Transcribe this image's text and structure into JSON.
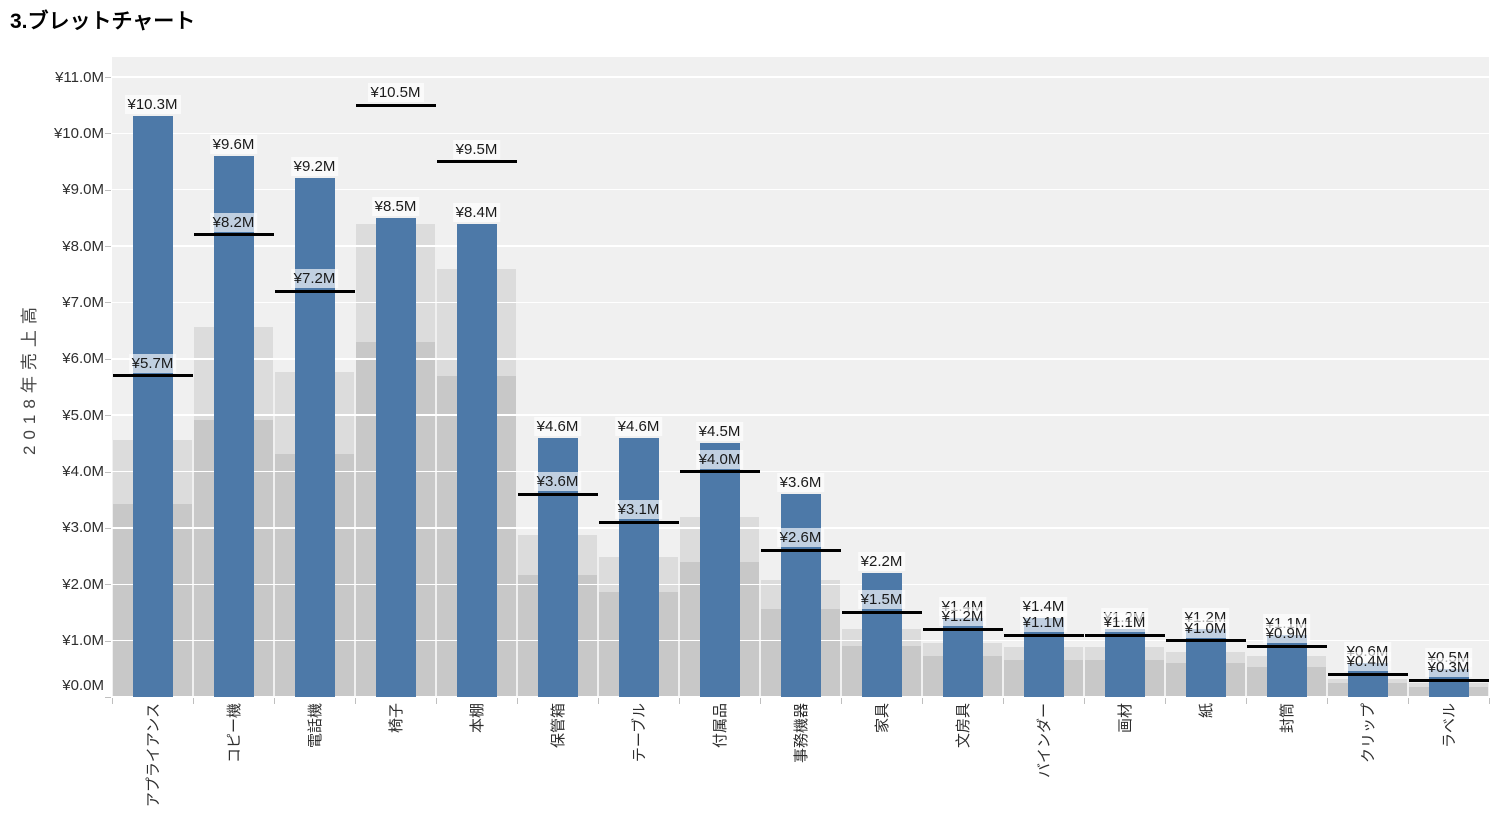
{
  "title": "3.ブレットチャート",
  "chart_data": {
    "type": "bar",
    "subtype": "bullet",
    "title": "3.ブレットチャート",
    "ylabel": "2018年売上高",
    "ylim": [
      0,
      11
    ],
    "grid": true,
    "y_tick_labels": [
      "¥0.0M",
      "¥1.0M",
      "¥2.0M",
      "¥3.0M",
      "¥4.0M",
      "¥5.0M",
      "¥6.0M",
      "¥7.0M",
      "¥8.0M",
      "¥9.0M",
      "¥10.0M",
      "¥11.0M"
    ],
    "categories": [
      "アプライアンス",
      "コピー機",
      "電話機",
      "椅子",
      "本棚",
      "保管箱",
      "テーブル",
      "付属品",
      "事務機器",
      "家具",
      "文房具",
      "バインダー",
      "画材",
      "紙",
      "封筒",
      "クリップ",
      "ラベル"
    ],
    "values": [
      10.3,
      9.6,
      9.2,
      8.5,
      8.4,
      4.6,
      4.6,
      4.5,
      3.6,
      2.2,
      1.4,
      1.4,
      1.2,
      1.2,
      1.1,
      0.6,
      0.5
    ],
    "targets": [
      5.7,
      8.2,
      7.2,
      10.5,
      9.5,
      3.6,
      3.1,
      4.0,
      2.6,
      1.5,
      1.2,
      1.1,
      1.1,
      1.0,
      0.9,
      0.4,
      0.3
    ],
    "value_labels": [
      "¥10.3M",
      "¥9.6M",
      "¥9.2M",
      "¥8.5M",
      "¥8.4M",
      "¥4.6M",
      "¥4.6M",
      "¥4.5M",
      "¥3.6M",
      "¥2.2M",
      "¥1.4M",
      "¥1.4M",
      "¥1.2M",
      "¥1.2M",
      "¥1.1M",
      "¥0.6M",
      "¥0.5M"
    ],
    "target_labels": [
      "¥5.7M",
      "¥8.2M",
      "¥7.2M",
      "¥10.5M",
      "¥9.5M",
      "¥3.6M",
      "¥3.1M",
      "¥4.0M",
      "¥2.6M",
      "¥1.5M",
      "¥1.2M",
      "¥1.1M",
      "¥1.1M",
      "¥1.0M",
      "¥0.9M",
      "¥0.4M",
      "¥0.3M"
    ],
    "band_fractions_of_target": [
      0.6,
      0.8
    ],
    "colors": {
      "bar": "#4d79a8",
      "band_low": "#c8c8c8",
      "band_mid": "#dcdcdc",
      "plot_bg": "#f0f0f0",
      "gridline": "#ffffff",
      "target_line": "#000000",
      "label_text": "#1a1a1a",
      "axis_text": "#2e2e2e"
    }
  }
}
